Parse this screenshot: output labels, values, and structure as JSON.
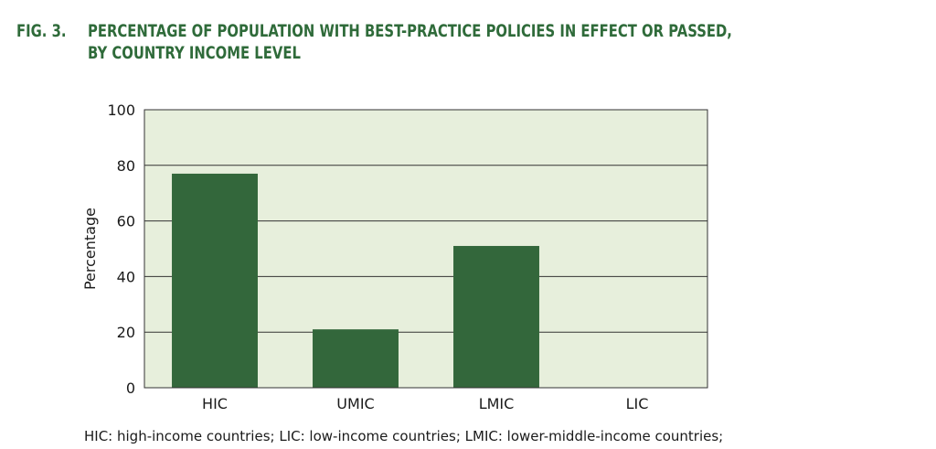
{
  "figure": {
    "label": "FIG. 3.",
    "title_line1": "PERCENTAGE OF POPULATION WITH BEST-PRACTICE POLICIES IN EFFECT OR PASSED,",
    "title_line2": "BY COUNTRY INCOME LEVEL",
    "footnote": "HIC: high-income countries; LIC: low-income countries; LMIC: lower-middle-income countries;"
  },
  "colors": {
    "bar": "#33673b",
    "plot_bg": "#e7efdc",
    "title": "#2f6b3a",
    "gridline": "#333333"
  },
  "chart_data": {
    "type": "bar",
    "categories": [
      "HIC",
      "UMIC",
      "LMIC",
      "LIC"
    ],
    "values": [
      77,
      21,
      51,
      0
    ],
    "title": "PERCENTAGE OF POPULATION WITH BEST-PRACTICE POLICIES IN EFFECT OR PASSED, BY COUNTRY INCOME LEVEL",
    "xlabel": "",
    "ylabel": "Percentage",
    "ylim": [
      0,
      100
    ],
    "yticks": [
      0,
      20,
      40,
      60,
      80,
      100
    ],
    "grid": true,
    "legend": "none"
  }
}
